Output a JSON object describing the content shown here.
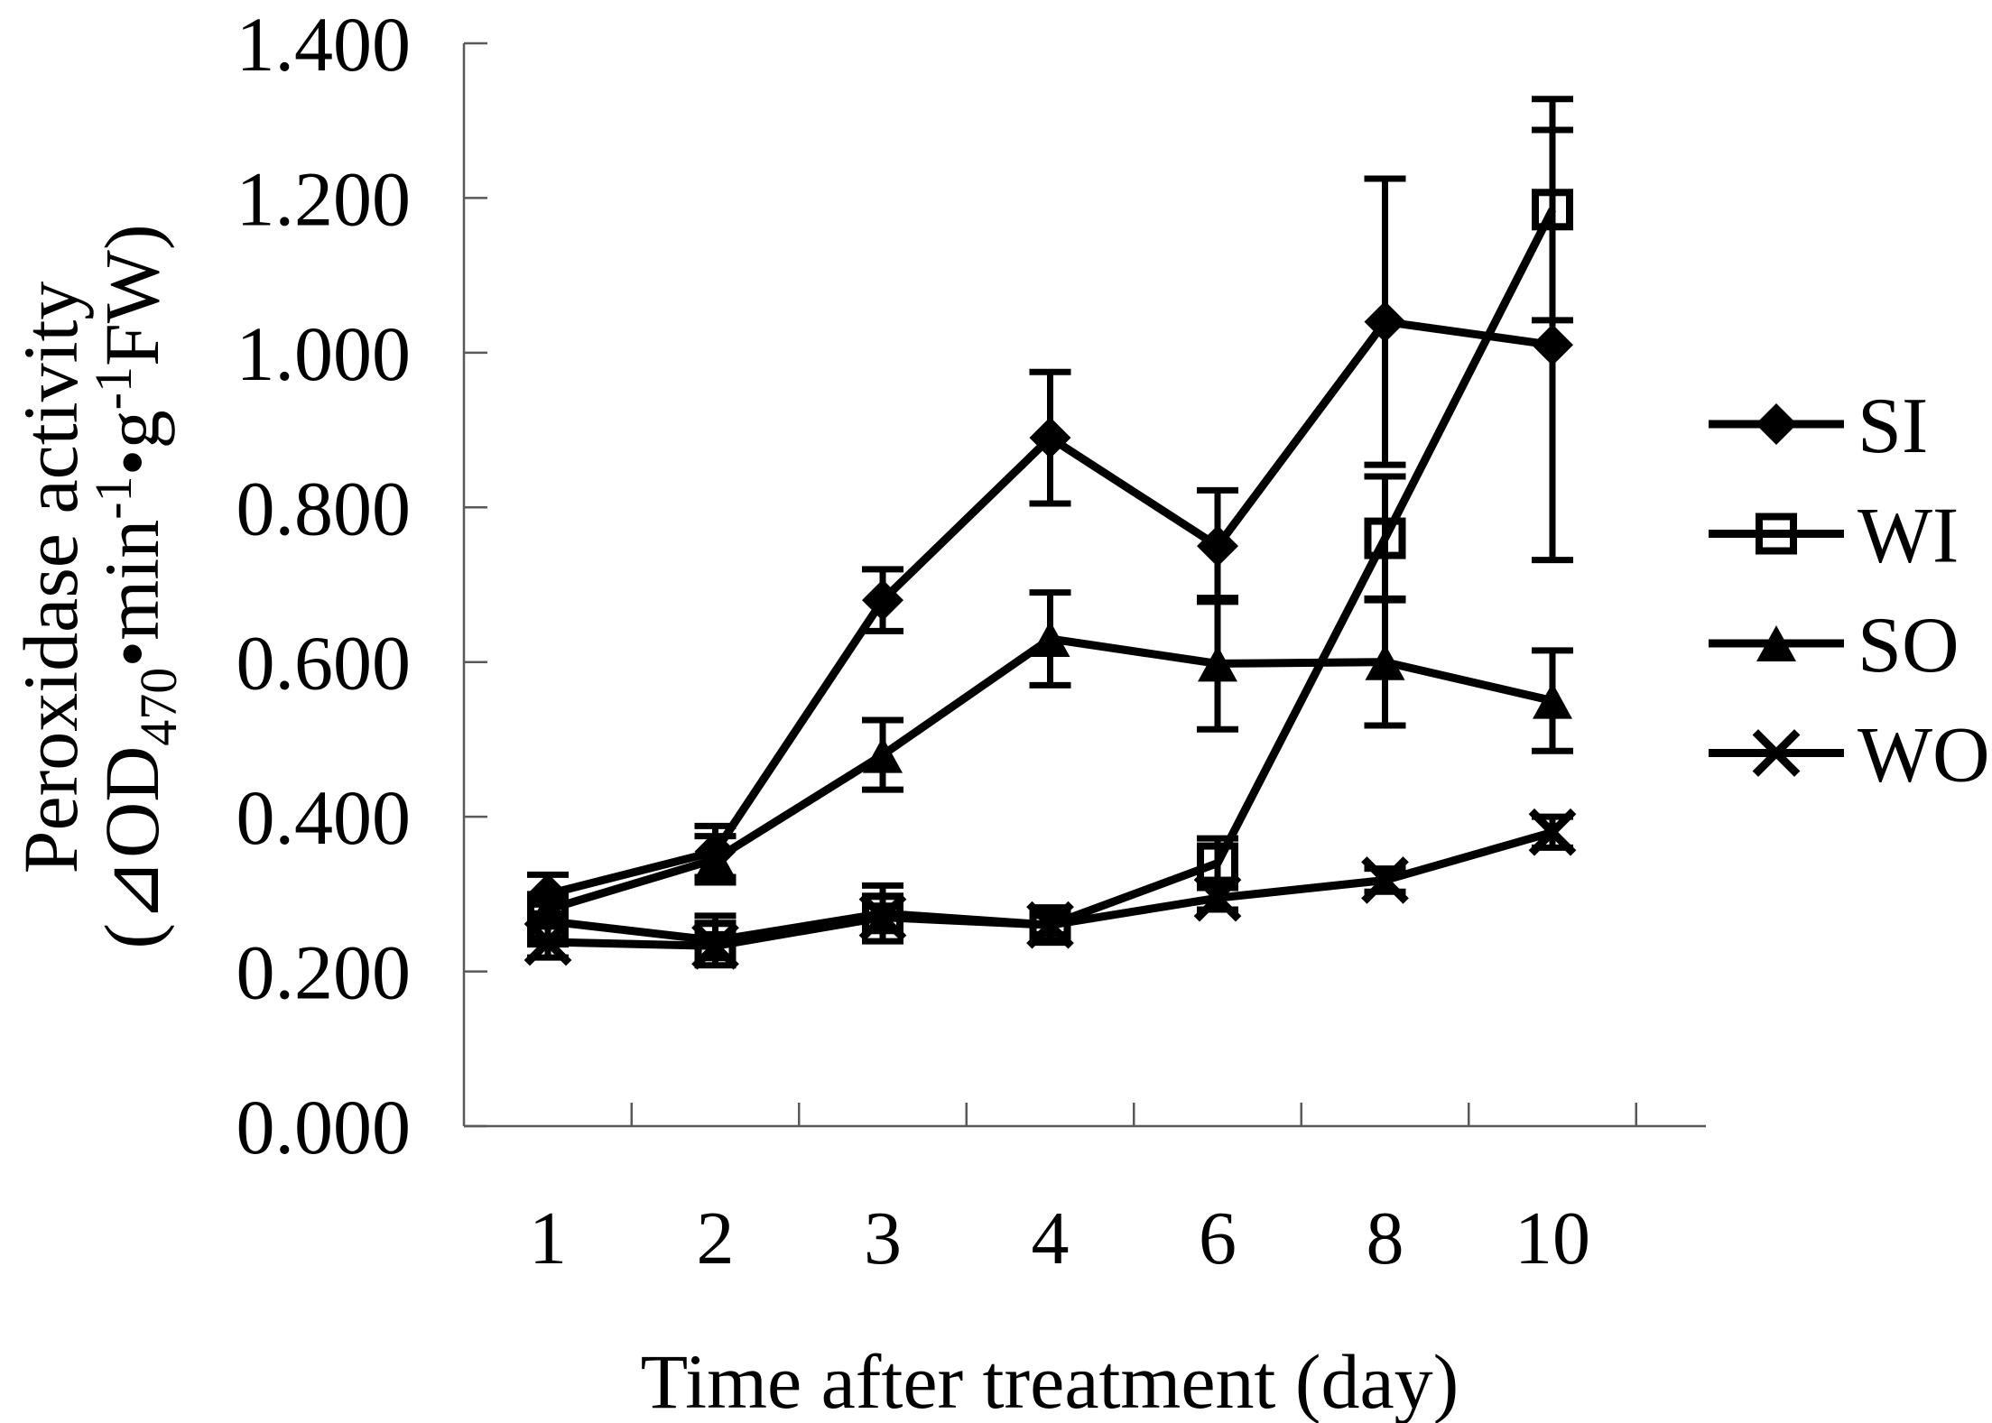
{
  "figure": {
    "background": "#ffffff",
    "axis_color": "#595959",
    "data_color": "#000000"
  },
  "chart_data": {
    "type": "line",
    "title": "",
    "xlabel": "Time after treatment (day)",
    "ylabel_line1": "Peroxidase activity",
    "ylabel_line2_parts": [
      {
        "t": "(",
        "s": "n"
      },
      {
        "t": "⊿",
        "s": "n"
      },
      {
        "t": "OD",
        "s": "n"
      },
      {
        "t": "470",
        "s": "sub"
      },
      {
        "t": "•min",
        "s": "n"
      },
      {
        "t": "-1",
        "s": "sup"
      },
      {
        "t": "•g",
        "s": "n"
      },
      {
        "t": "-1",
        "s": "sup"
      },
      {
        "t": "FW)",
        "s": "n"
      }
    ],
    "categories": [
      "1",
      "2",
      "3",
      "4",
      "6",
      "8",
      "10"
    ],
    "ylim": [
      0,
      1.4
    ],
    "ytick_step": 0.2,
    "ytick_labels": [
      "0.000",
      "0.200",
      "0.400",
      "0.600",
      "0.800",
      "1.000",
      "1.200",
      "1.400"
    ],
    "grid": false,
    "legend_position": "right",
    "error_bars": true,
    "series": [
      {
        "name": "SI",
        "marker": "filled-diamond",
        "color": "#000000",
        "values": [
          0.3,
          0.355,
          0.68,
          0.89,
          0.75,
          1.04,
          1.01
        ],
        "errors": [
          0.025,
          0.033,
          0.04,
          0.085,
          0.072,
          0.185,
          0.278
        ]
      },
      {
        "name": "WI",
        "marker": "open-square",
        "color": "#000000",
        "values": [
          0.265,
          0.24,
          0.275,
          0.26,
          0.34,
          0.76,
          1.185
        ],
        "errors": [
          0.03,
          0.032,
          0.036,
          0.02,
          0.032,
          0.08,
          0.143
        ]
      },
      {
        "name": "SO",
        "marker": "filled-triangle",
        "color": "#000000",
        "values": [
          0.28,
          0.345,
          0.48,
          0.63,
          0.598,
          0.6,
          0.55
        ],
        "errors": [
          0.02,
          0.03,
          0.045,
          0.06,
          0.085,
          0.082,
          0.065
        ]
      },
      {
        "name": "WO",
        "marker": "x-cross",
        "color": "#000000",
        "values": [
          0.238,
          0.233,
          0.27,
          0.26,
          0.295,
          0.318,
          0.38
        ],
        "errors": [
          0.02,
          0.015,
          0.015,
          0.012,
          0.015,
          0.015,
          0.02
        ]
      }
    ]
  }
}
